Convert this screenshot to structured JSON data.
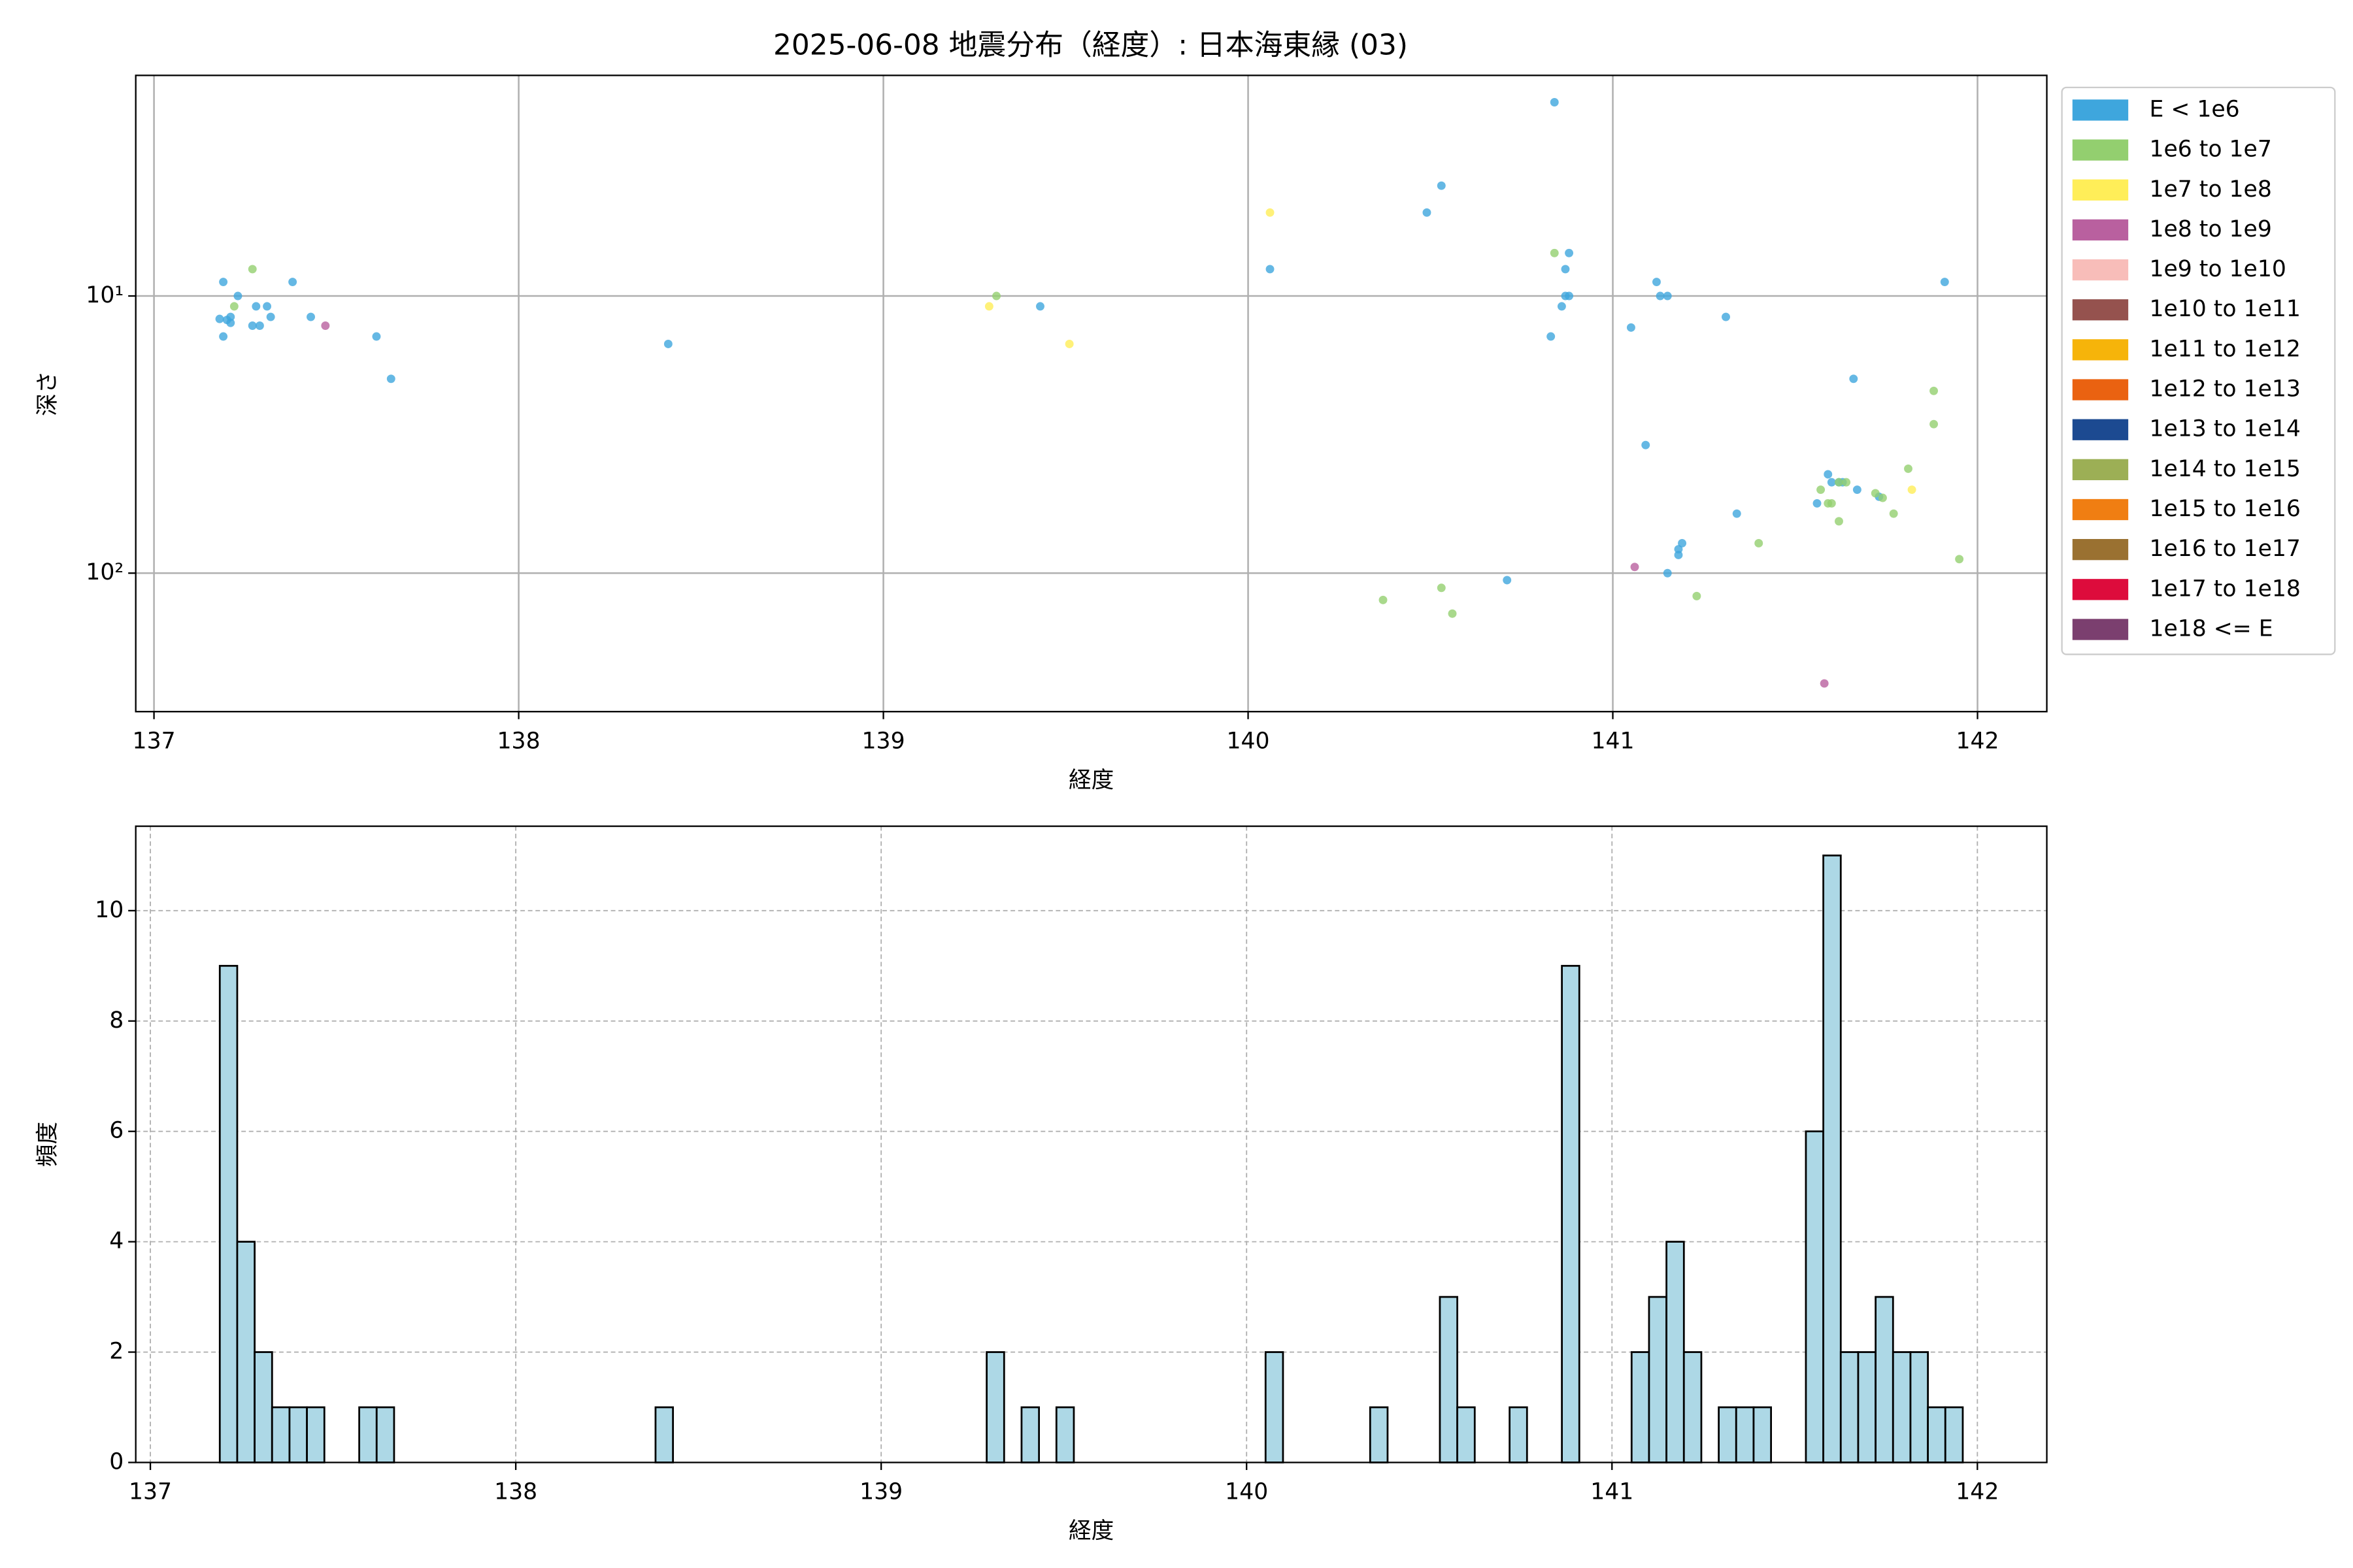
{
  "chart_data": [
    {
      "type": "scatter",
      "title": "2025-06-08 地震分布（経度）: 日本海東縁 (03)",
      "xlabel": "経度",
      "ylabel": "深さ",
      "xlim": [
        136.95,
        142.19
      ],
      "xticks": [
        137,
        138,
        139,
        140,
        141,
        142
      ],
      "ylim": [
        1.6,
        316
      ],
      "yscale": "log",
      "y_inverted": true,
      "yticks": [
        {
          "value": 10,
          "label": "10¹"
        },
        {
          "value": 100,
          "label": "10²"
        }
      ],
      "grid": true,
      "legend": "outside-right",
      "series": [
        {
          "name": "E < 1e6",
          "color": "#3ea6dd",
          "x": [
            137.19,
            137.19,
            137.18,
            137.2,
            137.21,
            137.21,
            137.23,
            137.27,
            137.28,
            137.29,
            137.31,
            137.32,
            137.38,
            137.43,
            137.61,
            137.65,
            138.41,
            139.43,
            140.06,
            140.49,
            140.53,
            140.84,
            140.83,
            140.86,
            140.87,
            140.87,
            140.88,
            140.88,
            141.05,
            141.12,
            141.13,
            141.15,
            141.31,
            141.09,
            141.34,
            141.19,
            141.18,
            141.18,
            141.15,
            140.71,
            141.66,
            141.91,
            141.59,
            141.56,
            141.6,
            141.62,
            141.63,
            141.67,
            141.73
          ],
          "values": [
            8.9,
            14,
            12.1,
            12.2,
            12.5,
            11.9,
            10,
            12.8,
            10.9,
            12.8,
            10.9,
            11.9,
            8.9,
            11.9,
            14,
            19.9,
            14.9,
            10.9,
            8,
            5,
            4,
            2,
            14,
            10.9,
            8,
            10,
            10,
            7,
            13,
            8.9,
            10,
            10,
            11.9,
            34.5,
            61,
            78,
            86,
            82,
            100,
            106,
            19.9,
            8.9,
            44,
            56,
            47,
            47,
            47,
            50,
            53
          ]
        },
        {
          "name": "1e6 to 1e7",
          "color": "#93cf6f",
          "x": [
            137.27,
            137.22,
            139.31,
            140.84,
            140.37,
            140.53,
            140.56,
            141.23,
            141.4,
            141.57,
            141.59,
            141.6,
            141.62,
            141.64,
            141.62,
            141.72,
            141.74,
            141.77,
            141.81,
            141.88,
            141.88,
            141.95
          ],
          "values": [
            8,
            10.9,
            10,
            7,
            125,
            113,
            140,
            121,
            78,
            50,
            56,
            56,
            47,
            47,
            65,
            51.5,
            53.5,
            61,
            42,
            22,
            29,
            89
          ]
        },
        {
          "name": "1e7 to 1e8",
          "color": "#ffee58",
          "x": [
            139.29,
            139.51,
            140.06,
            141.82
          ],
          "values": [
            10.9,
            14.9,
            5,
            50
          ]
        },
        {
          "name": "1e8 to 1e9",
          "color": "#b9609f",
          "x": [
            137.47,
            141.06,
            141.58
          ],
          "values": [
            12.8,
            95,
            250
          ]
        },
        {
          "name": "1e9 to 1e10",
          "color": "#f8bdb9",
          "x": [],
          "values": []
        },
        {
          "name": "1e10 to 1e11",
          "color": "#95524e",
          "x": [],
          "values": []
        },
        {
          "name": "1e11 to 1e12",
          "color": "#f6b40a",
          "x": [],
          "values": []
        },
        {
          "name": "1e12 to 1e13",
          "color": "#ea6211",
          "x": [],
          "values": []
        },
        {
          "name": "1e13 to 1e14",
          "color": "#1c4a91",
          "x": [],
          "values": []
        },
        {
          "name": "1e14 to 1e15",
          "color": "#9caf55",
          "x": [],
          "values": []
        },
        {
          "name": "1e15 to 1e16",
          "color": "#f07e12",
          "x": [],
          "values": []
        },
        {
          "name": "1e16 to 1e17",
          "color": "#9a7131",
          "x": [],
          "values": []
        },
        {
          "name": "1e17 to 1e18",
          "color": "#dd0c3c",
          "x": [],
          "values": []
        },
        {
          "name": "1e18 <= E",
          "color": "#7b3f6f",
          "x": [],
          "values": []
        }
      ]
    },
    {
      "type": "histogram",
      "xlabel": "経度",
      "ylabel": "頻度",
      "color": "#add8e6",
      "edgecolor": "#000000",
      "grid": true,
      "xlim": [
        136.96,
        142.19
      ],
      "xticks": [
        137,
        138,
        139,
        140,
        141,
        142
      ],
      "ylim": [
        0,
        11.53
      ],
      "yticks": [
        0,
        2,
        4,
        6,
        8,
        10
      ],
      "bins": [
        137.19,
        137.2377,
        137.2854,
        137.3331,
        137.3808,
        137.4285,
        137.4762,
        137.5239,
        137.5716,
        137.6193,
        137.667,
        137.7147,
        137.7624,
        137.8101,
        137.8578,
        137.9055,
        137.9532,
        138.0009,
        138.0486,
        138.0963,
        138.144,
        138.1917,
        138.2394,
        138.2871,
        138.3348,
        138.3825,
        138.4302,
        138.4779,
        138.5256,
        138.5733,
        138.621,
        138.6687,
        138.7164,
        138.7641,
        138.8118,
        138.8595,
        138.9072,
        138.9549,
        139.0026,
        139.0503,
        139.098,
        139.1457,
        139.1934,
        139.2411,
        139.2888,
        139.3365,
        139.3842,
        139.4319,
        139.4796,
        139.5273,
        139.575,
        139.6227,
        139.6704,
        139.7181,
        139.7658,
        139.8135,
        139.8612,
        139.9089,
        139.9566,
        140.0043,
        140.052,
        140.0997,
        140.1474,
        140.1951,
        140.2428,
        140.2905,
        140.3382,
        140.3859,
        140.4336,
        140.4813,
        140.529,
        140.5767,
        140.6244,
        140.6721,
        140.7198,
        140.7675,
        140.8152,
        140.8629,
        140.9106,
        140.9583,
        141.006,
        141.0537,
        141.1014,
        141.1491,
        141.1968,
        141.2445,
        141.2922,
        141.3399,
        141.3876,
        141.4353,
        141.483,
        141.5307,
        141.5784,
        141.6261,
        141.6738,
        141.7215,
        141.7692,
        141.8169,
        141.8646,
        141.9123,
        141.96
      ],
      "values": [
        9,
        4,
        2,
        1,
        1,
        1,
        0,
        0,
        1,
        1,
        0,
        0,
        0,
        0,
        0,
        0,
        0,
        0,
        0,
        0,
        0,
        0,
        0,
        0,
        0,
        1,
        0,
        0,
        0,
        0,
        0,
        0,
        0,
        0,
        0,
        0,
        0,
        0,
        0,
        0,
        0,
        0,
        0,
        0,
        2,
        0,
        1,
        0,
        1,
        0,
        0,
        0,
        0,
        0,
        0,
        0,
        0,
        0,
        0,
        0,
        2,
        0,
        0,
        0,
        0,
        0,
        1,
        0,
        0,
        0,
        3,
        1,
        0,
        0,
        1,
        0,
        0,
        9,
        0,
        0,
        0,
        2,
        3,
        4,
        2,
        0,
        1,
        1,
        1,
        0,
        0,
        6,
        11,
        2,
        2,
        3,
        2,
        2,
        1,
        1
      ]
    }
  ]
}
